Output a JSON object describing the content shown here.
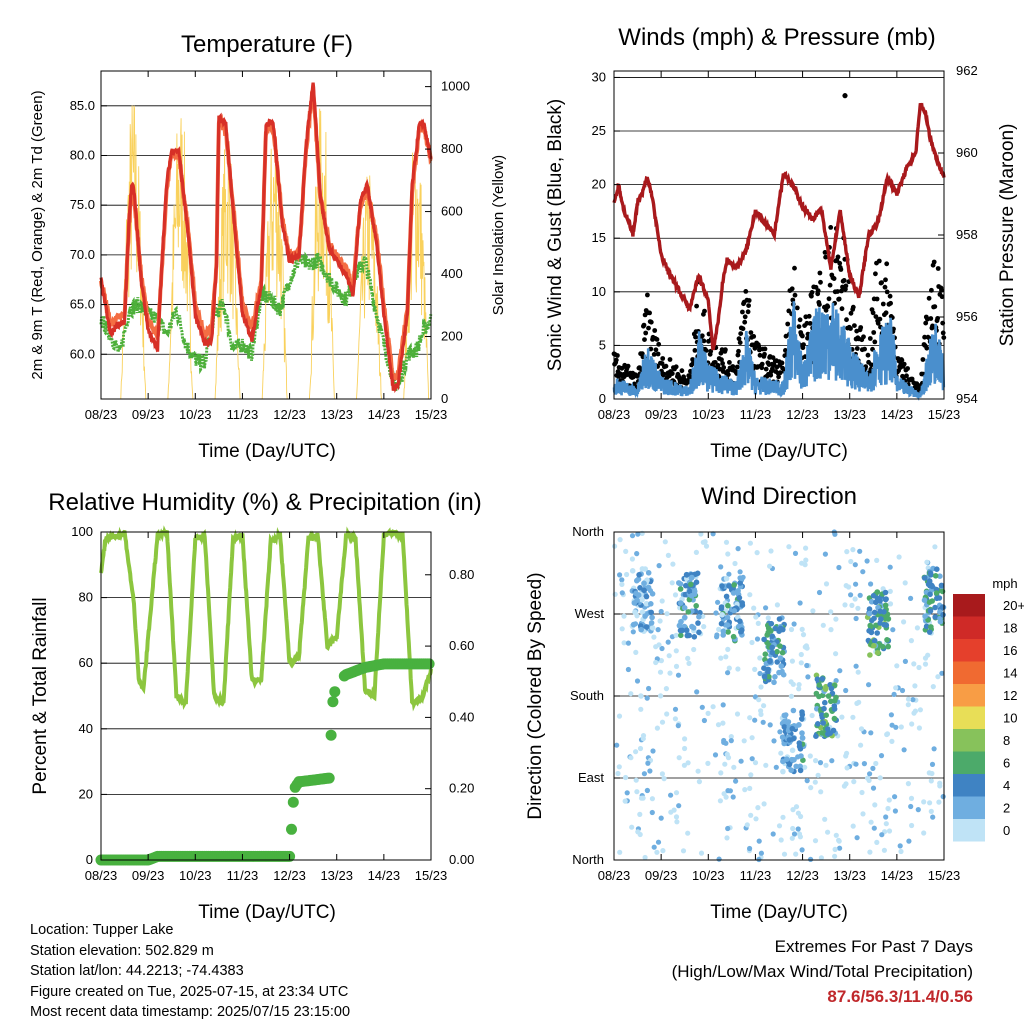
{
  "x_ticks": [
    "08/23",
    "09/23",
    "10/23",
    "11/23",
    "12/23",
    "13/23",
    "14/23",
    "15/23"
  ],
  "chart_data": [
    {
      "type": "line",
      "title": "Temperature (F)",
      "xlabel": "Time (Day/UTC)",
      "ylabel_left": "2m & 9m T (Red, Orange) & 2m Td (Green)",
      "ylabel_right": "Solar Insolation (Yellow)",
      "yticks_left": [
        "85.0",
        "80.0",
        "75.0",
        "70.0",
        "65.0",
        "60.0"
      ],
      "yticks_right": [
        "1000",
        "800",
        "600",
        "400",
        "200",
        "0"
      ],
      "ylim_left": [
        55.5,
        88.5
      ],
      "ylim_right": [
        0,
        1050
      ],
      "xlim_days": [
        0,
        7
      ],
      "series": [
        {
          "name": "2m T",
          "color": "#d73027",
          "x": [
            0,
            0.2,
            0.35,
            0.5,
            0.6,
            0.65,
            0.7,
            0.85,
            1.0,
            1.2,
            1.3,
            1.4,
            1.5,
            1.65,
            1.85,
            2.0,
            2.2,
            2.35,
            2.45,
            2.5,
            2.65,
            2.85,
            3.0,
            3.2,
            3.4,
            3.5,
            3.65,
            3.85,
            4.0,
            4.2,
            4.35,
            4.5,
            4.65,
            4.85,
            5.0,
            5.2,
            5.35,
            5.5,
            5.65,
            5.85,
            6.0,
            6.2,
            6.3,
            6.5,
            6.6,
            6.75,
            6.85,
            7.0
          ],
          "y": [
            67.5,
            62.0,
            63.0,
            63.2,
            74.0,
            77.0,
            76.5,
            67.5,
            62.5,
            60.5,
            70.0,
            77.5,
            80.5,
            80.5,
            72.0,
            64.0,
            61.0,
            61.5,
            69.0,
            84.0,
            83.0,
            72.0,
            64.0,
            61.5,
            67.0,
            83.0,
            83.5,
            73.0,
            69.5,
            69.8,
            81.0,
            87.5,
            76.0,
            70.5,
            69.5,
            68.0,
            66.0,
            75.5,
            77.0,
            71.0,
            64.0,
            56.5,
            57.0,
            64.0,
            77.0,
            83.0,
            83.2,
            79.5
          ]
        },
        {
          "name": "9m T",
          "color": "#f46d43",
          "x": [
            0,
            0.2,
            0.35,
            0.5,
            0.6,
            0.65,
            0.7,
            0.85,
            1.0,
            1.2,
            1.3,
            1.4,
            1.5,
            1.65,
            1.85,
            2.0,
            2.2,
            2.35,
            2.45,
            2.5,
            2.65,
            2.85,
            3.0,
            3.2,
            3.4,
            3.5,
            3.65,
            3.85,
            4.0,
            4.2,
            4.35,
            4.5,
            4.65,
            4.85,
            5.0,
            5.2,
            5.35,
            5.5,
            5.65,
            5.85,
            6.0,
            6.2,
            6.3,
            6.5,
            6.6,
            6.75,
            6.85,
            7.0
          ],
          "y": [
            67.5,
            63.0,
            63.6,
            64.0,
            73.5,
            76.5,
            76.0,
            68.0,
            63.5,
            61.5,
            69.5,
            77.0,
            80.0,
            80.0,
            72.5,
            65.0,
            62.0,
            62.5,
            69.0,
            83.5,
            82.5,
            72.5,
            65.0,
            62.5,
            67.5,
            82.5,
            83.0,
            73.5,
            70.0,
            70.0,
            80.5,
            87.0,
            76.0,
            71.0,
            70.0,
            68.5,
            67.0,
            75.0,
            76.5,
            71.5,
            65.0,
            57.5,
            58.0,
            64.5,
            76.5,
            82.5,
            82.8,
            79.5
          ]
        },
        {
          "name": "2m Td",
          "color": "#4daf3a",
          "x": [
            0,
            0.2,
            0.4,
            0.6,
            0.8,
            1.0,
            1.2,
            1.4,
            1.6,
            1.8,
            2.0,
            2.2,
            2.4,
            2.6,
            2.8,
            3.0,
            3.2,
            3.4,
            3.6,
            3.8,
            4.0,
            4.2,
            4.4,
            4.6,
            4.8,
            5.0,
            5.2,
            5.4,
            5.6,
            5.8,
            6.0,
            6.2,
            6.3,
            6.5,
            6.7,
            6.85,
            7.0
          ],
          "y": [
            63.5,
            62.0,
            60.0,
            64.5,
            65.0,
            64.0,
            63.5,
            62.0,
            64.5,
            61.0,
            59.5,
            59.0,
            64.0,
            65.0,
            60.5,
            61.0,
            60.0,
            66.0,
            65.5,
            64.5,
            67.5,
            69.5,
            69.0,
            69.5,
            68.0,
            66.5,
            65.5,
            68.0,
            69.5,
            65.0,
            61.0,
            57.5,
            56.5,
            60.0,
            60.5,
            62.5,
            63.5
          ]
        },
        {
          "name": "Solar Insolation",
          "color": "#f9d15c",
          "peak_days": [
            0.62,
            0.75,
            1.55,
            1.62,
            2.55,
            2.6,
            3.55,
            3.6,
            4.55,
            4.6,
            5.55,
            5.6,
            6.55,
            6.62
          ],
          "peak_values": [
            1000,
            920,
            980,
            850,
            880,
            700,
            920,
            800,
            980,
            900,
            760,
            640,
            900,
            780
          ]
        }
      ]
    },
    {
      "type": "scatter",
      "title": "Winds (mph) & Pressure (mb)",
      "xlabel": "Time (Day/UTC)",
      "ylabel_left": "Sonic Wind & Gust (Blue, Black)",
      "ylabel_right": "Station Pressure (Maroon)",
      "yticks_left": [
        "30",
        "25",
        "20",
        "15",
        "10",
        "5",
        "0"
      ],
      "yticks_right": [
        "962",
        "960",
        "958",
        "956",
        "954"
      ],
      "ylim_left": [
        0,
        30
      ],
      "ylim_right": [
        954,
        962
      ],
      "xlim_days": [
        0,
        7
      ],
      "series": [
        {
          "name": "Station Pressure",
          "color": "#a8191c",
          "x": [
            0,
            0.1,
            0.2,
            0.3,
            0.4,
            0.5,
            0.6,
            0.7,
            0.8,
            1.0,
            1.2,
            1.4,
            1.6,
            1.8,
            2.0,
            2.1,
            2.2,
            2.3,
            2.4,
            2.6,
            2.8,
            3.0,
            3.2,
            3.4,
            3.5,
            3.6,
            3.8,
            4.0,
            4.2,
            4.4,
            4.6,
            4.8,
            5.0,
            5.2,
            5.4,
            5.6,
            5.8,
            6.0,
            6.2,
            6.4,
            6.5,
            6.6,
            6.7,
            6.8,
            7.0
          ],
          "y": [
            958.8,
            959.2,
            958.6,
            958.4,
            958.0,
            958.8,
            959.0,
            959.4,
            959.0,
            957.5,
            957.0,
            956.6,
            956.2,
            957.0,
            956.4,
            955.2,
            955.8,
            956.8,
            957.4,
            957.2,
            957.6,
            958.6,
            958.3,
            958.0,
            958.8,
            959.5,
            959.2,
            958.7,
            958.4,
            958.6,
            957.2,
            958.6,
            957.0,
            956.5,
            958.0,
            958.3,
            959.4,
            959.0,
            959.6,
            960.0,
            961.2,
            961.0,
            960.4,
            960.0,
            959.4
          ]
        },
        {
          "name": "Gust",
          "color": "#000000",
          "x": [
            0,
            0.5,
            0.7,
            1.0,
            1.6,
            1.8,
            2.0,
            2.6,
            2.8,
            3.0,
            3.6,
            3.8,
            4.0,
            4.3,
            4.6,
            4.9,
            5.0,
            5.4,
            5.6,
            5.9,
            6.0,
            6.5,
            6.7,
            6.9,
            7.0
          ],
          "y": [
            4,
            2,
            9,
            4,
            2,
            10,
            6,
            3,
            12,
            5,
            3,
            13,
            6,
            11,
            15,
            28.3,
            9,
            4,
            14,
            10,
            4,
            1,
            11,
            13,
            6
          ]
        },
        {
          "name": "Sonic Wind",
          "color": "#4a8fcd",
          "x": [
            0,
            0.5,
            0.7,
            1.0,
            1.6,
            1.8,
            2.0,
            2.6,
            2.8,
            3.0,
            3.6,
            3.8,
            4.0,
            4.3,
            4.6,
            5.0,
            5.4,
            5.6,
            5.9,
            6.0,
            6.5,
            6.7,
            6.9,
            7.0
          ],
          "y": [
            2,
            1,
            5,
            2,
            1,
            6,
            3,
            1.5,
            6,
            2,
            1.5,
            9,
            3,
            8,
            9,
            5,
            2,
            6,
            7,
            2,
            0.5,
            5,
            8,
            3
          ]
        }
      ]
    },
    {
      "type": "line",
      "title": "Relative Humidity (%) & Precipitation (in)",
      "xlabel": "Time (Day/UTC)",
      "ylabel_left": "Percent & Total Rainfall",
      "yticks_left": [
        "100",
        "80",
        "60",
        "40",
        "20",
        "0"
      ],
      "yticks_right": [
        "0.80",
        "0.60",
        "0.40",
        "0.20",
        "0.00"
      ],
      "ylim_left": [
        0,
        100
      ],
      "ylim_right": [
        0,
        0.92
      ],
      "xlim_days": [
        0,
        7
      ],
      "series": [
        {
          "name": "Relative Humidity",
          "color": "#8cc63f",
          "x": [
            0,
            0.1,
            0.4,
            0.5,
            0.7,
            0.8,
            0.9,
            1.2,
            1.4,
            1.6,
            1.8,
            2.0,
            2.2,
            2.4,
            2.6,
            2.8,
            3.0,
            3.2,
            3.4,
            3.6,
            3.8,
            4.0,
            4.2,
            4.4,
            4.6,
            4.8,
            5.0,
            5.2,
            5.4,
            5.6,
            5.8,
            6.0,
            6.2,
            6.4,
            6.6,
            6.8,
            7.0
          ],
          "y": [
            88,
            98,
            99,
            100,
            78,
            55,
            52,
            99,
            100,
            50,
            48,
            98,
            99,
            50,
            48,
            98,
            99,
            55,
            55,
            97,
            99,
            60,
            62,
            98,
            99,
            65,
            68,
            99,
            98,
            52,
            50,
            99,
            100,
            99,
            48,
            49,
            58
          ]
        },
        {
          "name": "Total Precipitation",
          "color": "#48b13f",
          "x": [
            0,
            1.0,
            1.2,
            4.0,
            4.1,
            4.2,
            4.25,
            4.85,
            4.9,
            5.0,
            5.2,
            5.6,
            6.0,
            7.0
          ],
          "y": [
            0,
            0,
            0.01,
            0.01,
            0.2,
            0.22,
            0.22,
            0.23,
            0.43,
            0.5,
            0.52,
            0.54,
            0.55,
            0.55
          ]
        }
      ]
    },
    {
      "type": "scatter",
      "title": "Wind Direction",
      "xlabel": "Time (Day/UTC)",
      "ylabel_left": "Direction (Colored By Speed)",
      "yticks_left": [
        "North",
        "West",
        "South",
        "East",
        "North"
      ],
      "legend_title": "mph",
      "legend_labels": [
        "20+",
        "18",
        "16",
        "14",
        "12",
        "10",
        "8",
        "6",
        "4",
        "2",
        "0"
      ],
      "legend_colors": [
        "#a81a1c",
        "#cf2a27",
        "#e5402c",
        "#f06a31",
        "#f89d45",
        "#e8de57",
        "#87c25b",
        "#4caa6a",
        "#3f83c3",
        "#6faee0",
        "#bfe3f6"
      ],
      "clusters": [
        {
          "day": 0.6,
          "dir": 285,
          "speed": 3
        },
        {
          "day": 1.6,
          "dir": 280,
          "speed": 4
        },
        {
          "day": 2.5,
          "dir": 275,
          "speed": 4
        },
        {
          "day": 3.4,
          "dir": 230,
          "speed": 5
        },
        {
          "day": 3.8,
          "dir": 130,
          "speed": 4
        },
        {
          "day": 4.5,
          "dir": 170,
          "speed": 6
        },
        {
          "day": 5.6,
          "dir": 260,
          "speed": 6
        },
        {
          "day": 6.8,
          "dir": 285,
          "speed": 5
        }
      ]
    }
  ],
  "info": {
    "location": "Location: Tupper Lake",
    "elevation": "Station elevation: 502.829 m",
    "latlon": "Station lat/lon: 44.2213; -74.4383",
    "created": "Figure created on Tue, 2025-07-15, at 23:34 UTC",
    "recent": "Most recent data timestamp: 2025/07/15 23:15:00"
  },
  "extremes": {
    "title": "Extremes For Past 7 Days",
    "subtitle": "(High/Low/Max Wind/Total Precipitation)",
    "values": "87.6/56.3/11.4/0.56"
  }
}
